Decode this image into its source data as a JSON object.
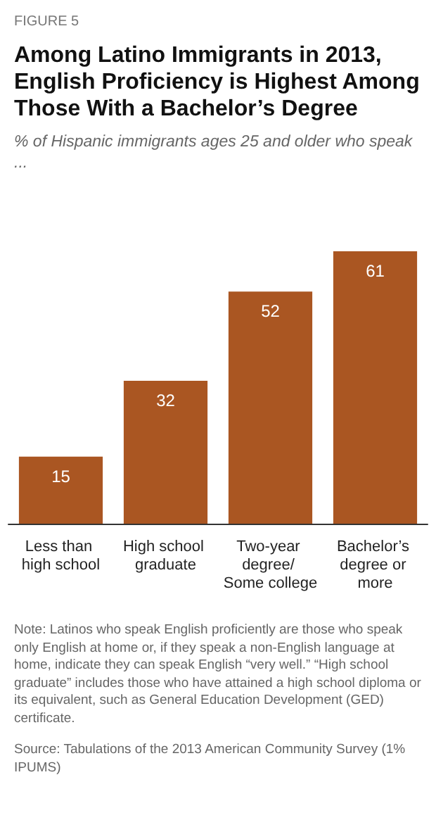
{
  "chart_data": {
    "type": "bar",
    "title": "Among Latino Immigrants in 2013, English Proficiency is Highest Among Those With a Bachelor’s Degree",
    "subtitle": "% of Hispanic immigrants ages 25 and older who speak ...",
    "categories": [
      "Less than high school",
      "High school graduate",
      "Two-year degree/ Some college",
      "Bachelor’s degree or more"
    ],
    "values": [
      15,
      32,
      52,
      61
    ],
    "color": "#aa5622",
    "data_labels": true,
    "annotations": [
      "FIGURE 5",
      "Note: Latinos who speak English proficiently are those who speak only English at home or, if they speak a non-English language at home, indicate they can speak English “very well.” “High school graduate” includes those who have attained a high school diploma or its equivalent, such as General Education Development (GED) certificate.",
      "Source: Tabulations of the 2013 American Community Survey (1% IPUMS)"
    ]
  }
}
